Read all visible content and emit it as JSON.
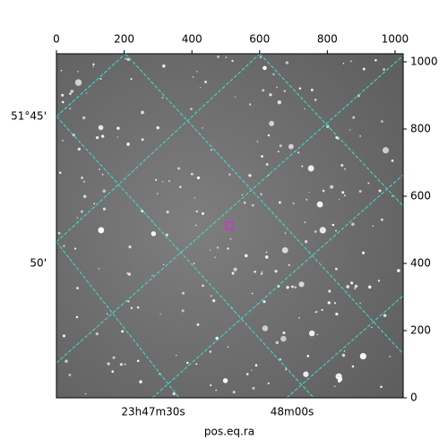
{
  "chart_data": {
    "type": "image",
    "xlabel": "pos.eq.ra",
    "xlim": [
      0,
      1024
    ],
    "ylim": [
      0,
      1024
    ],
    "xticks": [
      0,
      200,
      400,
      600,
      800,
      1000
    ],
    "yticks": [
      0,
      200,
      400,
      600,
      800,
      1000
    ],
    "ra_labels": [
      "23h47m30s",
      "48m00s"
    ],
    "dec_labels": [
      "51°45'",
      "50'"
    ],
    "grid_color": "#40e0d0",
    "points": {
      "x": [
        512
      ],
      "y": [
        512
      ],
      "color": "#cc33cc"
    }
  }
}
